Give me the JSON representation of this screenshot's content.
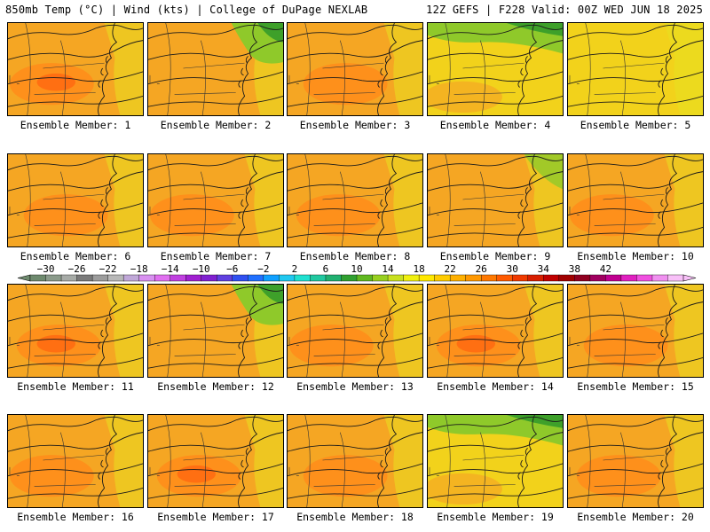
{
  "header": {
    "left": "850mb Temp (°C) | Wind (kts) | College of DuPage NEXLAB",
    "right": "12Z GEFS | F228 Valid: 00Z WED JUN 18 2025"
  },
  "members": [
    {
      "caption": "Ensemble Member: 1",
      "tone": "warm-orange"
    },
    {
      "caption": "Ensemble Member: 2",
      "tone": "orange-green-ne"
    },
    {
      "caption": "Ensemble Member: 3",
      "tone": "orange"
    },
    {
      "caption": "Ensemble Member: 4",
      "tone": "yellow-green-n"
    },
    {
      "caption": "Ensemble Member: 5",
      "tone": "yellow"
    },
    {
      "caption": "Ensemble Member: 6",
      "tone": "orange"
    },
    {
      "caption": "Ensemble Member: 7",
      "tone": "orange"
    },
    {
      "caption": "Ensemble Member: 8",
      "tone": "orange"
    },
    {
      "caption": "Ensemble Member: 9",
      "tone": "orange-yellow-ne"
    },
    {
      "caption": "Ensemble Member: 10",
      "tone": "orange"
    },
    {
      "caption": "Ensemble Member: 11",
      "tone": "warm-orange"
    },
    {
      "caption": "Ensemble Member: 12",
      "tone": "orange-green-ne"
    },
    {
      "caption": "Ensemble Member: 13",
      "tone": "orange"
    },
    {
      "caption": "Ensemble Member: 14",
      "tone": "warm-orange"
    },
    {
      "caption": "Ensemble Member: 15",
      "tone": "orange"
    },
    {
      "caption": "Ensemble Member: 16",
      "tone": "orange"
    },
    {
      "caption": "Ensemble Member: 17",
      "tone": "warm-orange"
    },
    {
      "caption": "Ensemble Member: 18",
      "tone": "orange"
    },
    {
      "caption": "Ensemble Member: 19",
      "tone": "yellow-green-n"
    },
    {
      "caption": "Ensemble Member: 20",
      "tone": "orange"
    }
  ],
  "colorbar": {
    "labels": [
      "−30",
      "−26",
      "−22",
      "−18",
      "−14",
      "−10",
      "−6",
      "−2",
      "2",
      "6",
      "10",
      "14",
      "18",
      "22",
      "26",
      "30",
      "34",
      "38",
      "42"
    ],
    "colors": [
      "#6e8a6e",
      "#8a9a8a",
      "#a7aba7",
      "#7a7a7a",
      "#9c9c9c",
      "#b8b8b8",
      "#c0a8d8",
      "#d890f0",
      "#e070f0",
      "#c040e0",
      "#a020d0",
      "#8020d0",
      "#6040e0",
      "#3050f0",
      "#2070ff",
      "#10a0ff",
      "#20c8f0",
      "#20e0d0",
      "#20c8a0",
      "#20b070",
      "#30a030",
      "#60b820",
      "#98d020",
      "#c8e020",
      "#f0f010",
      "#ffe800",
      "#ffcc00",
      "#ffb000",
      "#ff9800",
      "#ff7800",
      "#ff5a00",
      "#f03a00",
      "#d81e00",
      "#c00000",
      "#a00000",
      "#900020",
      "#a00060",
      "#c00090",
      "#e020c0",
      "#f050e0",
      "#f090f0",
      "#f8c0f8"
    ]
  },
  "tone_colors": {
    "base": "#f5a623",
    "warm": "#ff8c1a",
    "hot": "#ff6a10",
    "yellow": "#f2d21b",
    "lightyellow": "#e8e020",
    "green": "#8fc92a",
    "darkgreen": "#3ea02a"
  }
}
